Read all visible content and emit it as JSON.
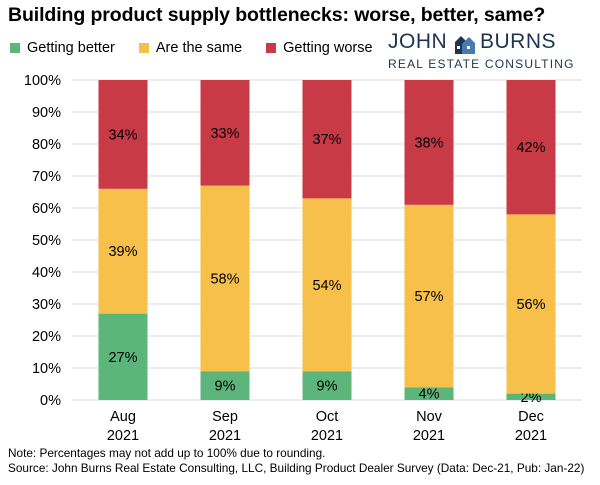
{
  "chart_data": {
    "type": "bar",
    "stacked": true,
    "percent": true,
    "title": "Building product supply bottlenecks: worse, better, same?",
    "categories": [
      [
        "Aug",
        "2021"
      ],
      [
        "Sep",
        "2021"
      ],
      [
        "Oct",
        "2021"
      ],
      [
        "Nov",
        "2021"
      ],
      [
        "Dec",
        "2021"
      ]
    ],
    "series": [
      {
        "name": "Getting better",
        "color": "#5cb57a",
        "values": [
          27,
          9,
          9,
          4,
          2
        ],
        "labels": [
          "27%",
          "9%",
          "9%",
          "4%",
          "2%"
        ]
      },
      {
        "name": "Are the same",
        "color": "#f7c04a",
        "values": [
          39,
          58,
          54,
          57,
          56
        ],
        "labels": [
          "39%",
          "58%",
          "54%",
          "57%",
          "56%"
        ]
      },
      {
        "name": "Getting worse",
        "color": "#c83a45",
        "values": [
          34,
          33,
          37,
          38,
          42
        ],
        "labels": [
          "34%",
          "33%",
          "37%",
          "38%",
          "42%"
        ]
      }
    ],
    "ylim": [
      0,
      100
    ],
    "yticks": [
      "0%",
      "10%",
      "20%",
      "30%",
      "40%",
      "50%",
      "60%",
      "70%",
      "80%",
      "90%",
      "100%"
    ],
    "grid": true,
    "legend_position": "top-left"
  },
  "logo": {
    "line1_left": "JOHN",
    "line1_right": "BURNS",
    "line2": "REAL ESTATE CONSULTING"
  },
  "notes": {
    "line1": "Note: Percentages may not add up to 100% due to rounding.",
    "line2": "Source: John Burns Real Estate Consulting, LLC, Building Product Dealer Survey (Data: Dec-21, Pub: Jan-22)"
  }
}
